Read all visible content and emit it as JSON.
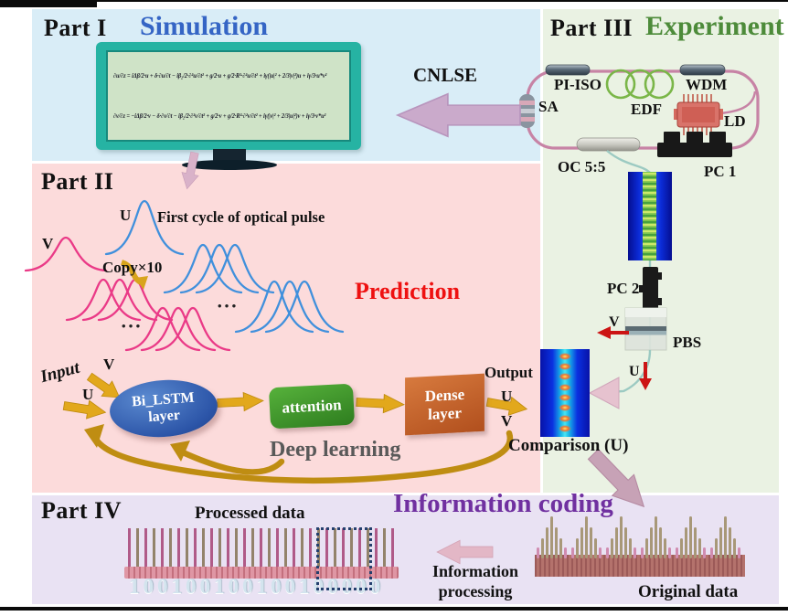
{
  "parts": {
    "part1": {
      "label": "Part I",
      "title": "Simulation"
    },
    "part2": {
      "label": "Part II"
    },
    "part3": {
      "label": "Part III",
      "title": "Experiment"
    },
    "part4": {
      "label": "Part IV",
      "title": "Information coding"
    }
  },
  "simulation": {
    "cnlse_label": "CNLSE",
    "equation_u": "∂u/∂z = iΔβ/2·u + δ·∂u/∂t − iβ₂/2·∂²u/∂t² + g/2·u + g/2·R²·∂²u/∂t² + iγ(|u|² + 2/3|v|²)u + iγ/3·u*v²",
    "equation_v": "∂v/∂z = −iΔβ/2·v − δ·∂v/∂t − iβ₂/2·∂²v/∂t² + g/2·v + g/2·R²·∂²v/∂t² + iγ(|v|² + 2/3|u|²)v + iγ/3·v*u²"
  },
  "experiment": {
    "components": {
      "pi_iso": "PI-ISO",
      "wdm": "WDM",
      "sa": "SA",
      "edf": "EDF",
      "ld": "LD",
      "pc1": "PC 1",
      "oc": "OC 5:5",
      "pc2": "PC 2",
      "pbs": "PBS"
    },
    "v_label": "V",
    "u_label": "U",
    "comparison_label": "Comparison (U)"
  },
  "prediction": {
    "title": "Prediction",
    "u_pulse_label": "U",
    "v_pulse_label": "V",
    "first_cycle": "First cycle of optical pulse",
    "copy_label": "Copy×10",
    "ellipsis": "• • •",
    "input_label": "Input",
    "input_v": "V",
    "input_u": "U",
    "bilstm_line1": "Bi_LSTM",
    "bilstm_line2": "layer",
    "attention_label": "attention",
    "dense_line1": "Dense",
    "dense_line2": "layer",
    "output_label": "Output",
    "output_u": "U",
    "output_v": "V",
    "deep_learning": "Deep learning"
  },
  "coding": {
    "processed_label": "Processed data",
    "binary": "100100100100100000",
    "info_line1": "Information",
    "info_line2": "processing",
    "original_label": "Original data",
    "original_pattern": {
      "heights": [
        10,
        20,
        32,
        44,
        32,
        20,
        10
      ],
      "clusters": 6
    }
  },
  "colors": {
    "part1_bg": "#d9edf7",
    "part2_bg": "#fcdbdb",
    "part3_bg": "#eaf2e3",
    "part4_bg": "#e9e2f3",
    "simulation_blue": "#3565c5",
    "experiment_green": "#4d8b3a",
    "prediction_red": "#ee1111",
    "coding_purple": "#7030a0",
    "gold_arrow": "#e2a81c",
    "mauve_arrow": "#c7a2b6",
    "pulse_pink": "#ea3a87",
    "pulse_blue": "#4090dc",
    "fiber_loop": "#c783a5",
    "fiber_out": "#9ccac2",
    "red_arrow": "#cc1414"
  }
}
